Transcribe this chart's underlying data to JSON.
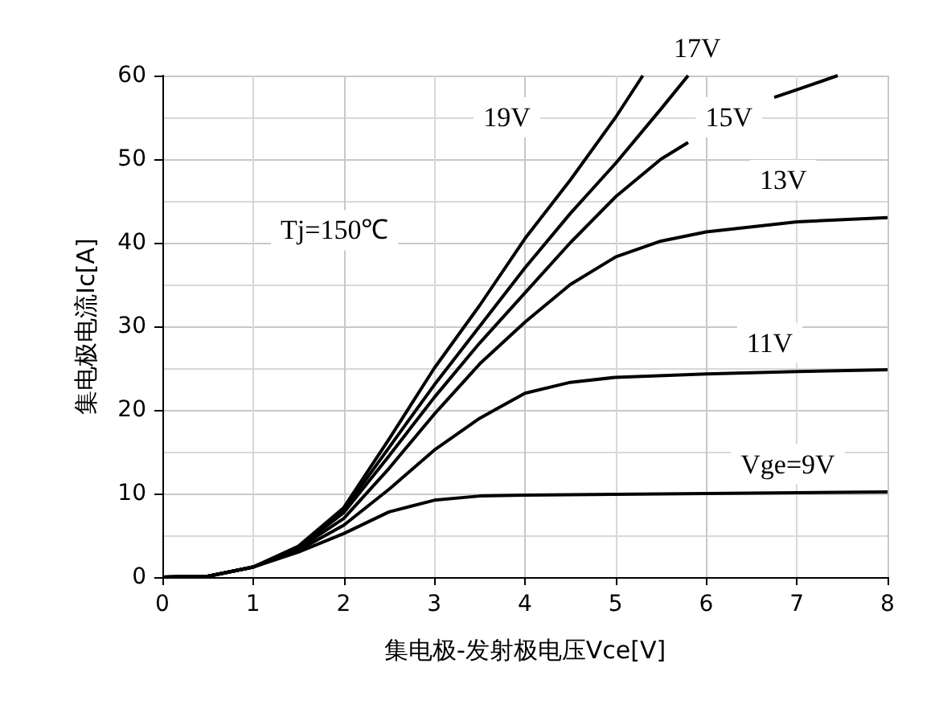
{
  "chart_data": {
    "type": "line",
    "xlabel": "集电极-发射极电压Vce[V]",
    "ylabel": "集电极电流Ic[A]",
    "annotations": [
      "Tj=150℃"
    ],
    "xlim": [
      0,
      8
    ],
    "xticks": [
      0,
      1,
      2,
      3,
      4,
      5,
      6,
      7,
      8
    ],
    "ylim": [
      0,
      60
    ],
    "yticks": [
      0,
      10,
      20,
      30,
      40,
      50,
      60
    ],
    "grid": true,
    "legend": false,
    "marker": "none",
    "line_style": "solid",
    "series": [
      {
        "name": "Vge=9V",
        "color": "#000000",
        "x": [
          0,
          0.5,
          1,
          1.5,
          2,
          2.5,
          3,
          3.5,
          4,
          5,
          6,
          7,
          8
        ],
        "values": [
          0,
          0.1,
          1.2,
          3,
          5.2,
          7.8,
          9.2,
          9.7,
          9.8,
          9.9,
          10,
          10.1,
          10.2
        ]
      },
      {
        "name": "11V",
        "color": "#000000",
        "x": [
          0,
          0.5,
          1,
          1.5,
          2,
          2.5,
          3,
          3.5,
          4,
          4.5,
          5,
          6,
          7,
          8
        ],
        "values": [
          0,
          0.1,
          1.2,
          3.2,
          6.2,
          10.5,
          15.2,
          19,
          22,
          23.3,
          23.9,
          24.3,
          24.6,
          24.8
        ]
      },
      {
        "name": "13V",
        "color": "#000000",
        "x": [
          0,
          0.5,
          1,
          1.5,
          2,
          2.5,
          3,
          3.5,
          4,
          4.5,
          5,
          5.5,
          6,
          7,
          8
        ],
        "values": [
          0,
          0.1,
          1.2,
          3.4,
          7,
          13,
          19.5,
          25.5,
          30.5,
          35,
          38.3,
          40.2,
          41.3,
          42.5,
          43
        ]
      },
      {
        "name": "15V",
        "color": "#000000",
        "x": [
          0,
          0.5,
          1,
          1.5,
          2,
          2.5,
          3,
          3.5,
          4,
          4.5,
          5,
          5.5,
          5.8,
          6,
          6.5,
          6.75,
          7,
          7.45
        ],
        "values": [
          0,
          0.1,
          1.2,
          3.5,
          7.7,
          14.5,
          21.5,
          28,
          34,
          40,
          45.5,
          50,
          52,
          null,
          null,
          57.4,
          58.3,
          60
        ]
      },
      {
        "name": "17V",
        "color": "#000000",
        "x": [
          0,
          0.5,
          1,
          1.5,
          2,
          2.5,
          3,
          3.5,
          4,
          4.5,
          5,
          5.5,
          5.8
        ],
        "values": [
          0,
          0.1,
          1.2,
          3.6,
          8,
          15.5,
          23,
          30,
          37,
          43.5,
          49.5,
          56,
          60
        ]
      },
      {
        "name": "19V",
        "color": "#000000",
        "x": [
          0,
          0.5,
          1,
          1.5,
          2,
          2.5,
          3,
          3.5,
          4,
          4.5,
          5,
          5.3
        ],
        "values": [
          0,
          0.1,
          1.2,
          3.7,
          8.3,
          16.5,
          25,
          32.5,
          40.5,
          47.5,
          55,
          60
        ]
      }
    ]
  }
}
